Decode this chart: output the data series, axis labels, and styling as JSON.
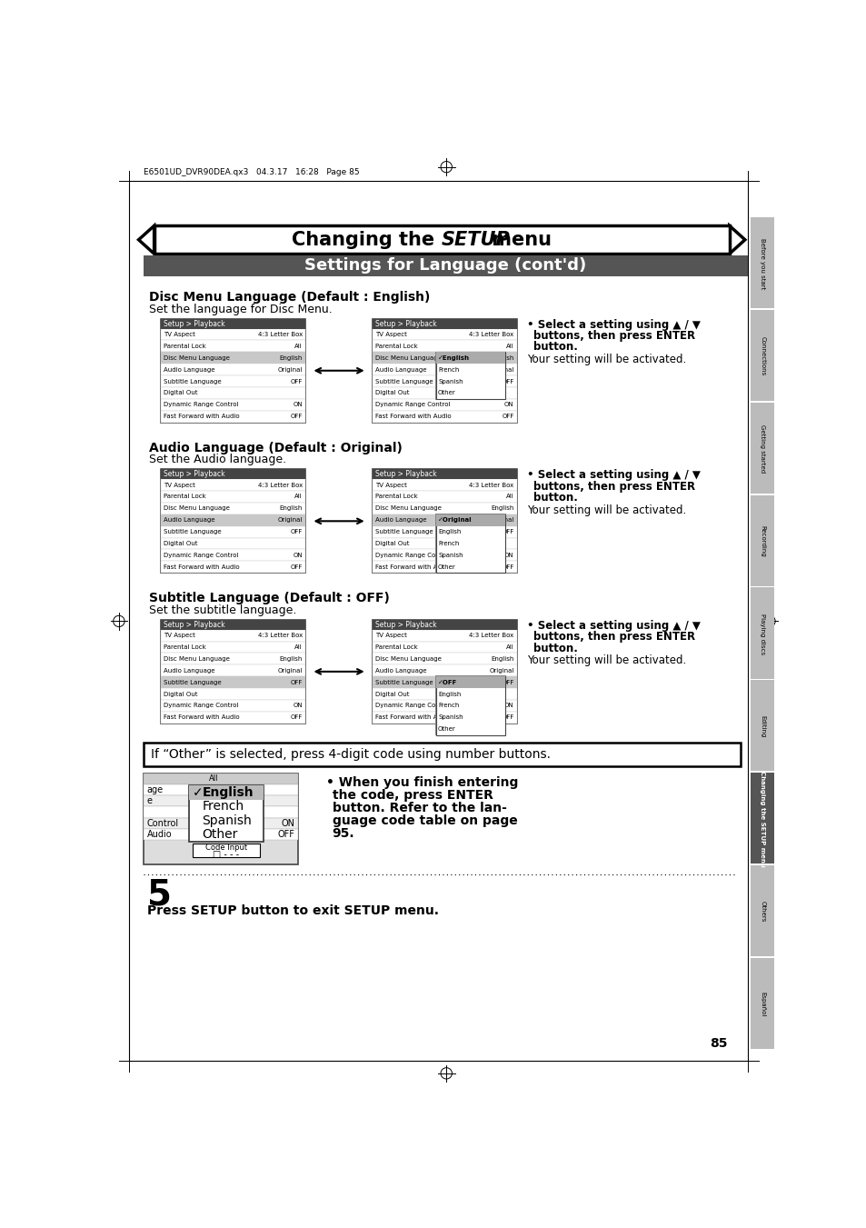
{
  "page_bg": "#ffffff",
  "title_text_normal": "Changing the ",
  "title_text_bold_italic": "SETUP",
  "title_text_end": " menu",
  "subtitle_text": "Settings for Language (cont'd)",
  "header_meta": "E6501UD_DVR90DEA.qx3   04.3.17   16:28   Page 85",
  "section1_title": "Disc Menu Language (Default : English)",
  "section1_desc": "Set the language for Disc Menu.",
  "section2_title": "Audio Language (Default : Original)",
  "section2_desc": "Set the Audio language.",
  "section3_title": "Subtitle Language (Default : OFF)",
  "section3_desc": "Set the subtitle language.",
  "activated_note": "Your setting will be activated.",
  "other_box_text": "If “Other” is selected, press 4-digit code using number buttons.",
  "footer_text": "Press SETUP button to exit SETUP menu.",
  "page_number": "85",
  "right_tabs": [
    "Before you start",
    "Connections",
    "Getting started",
    "Recording",
    "Playing discs",
    "Editing",
    "Changing the SETUP menu",
    "Others",
    "Español"
  ],
  "tab_active_idx": 6,
  "menu_rows": [
    "Setup > Playback",
    "TV Aspect",
    "Parental Lock",
    "Disc Menu Language",
    "Audio Language",
    "Subtitle Language",
    "Digital Out",
    "Dynamic Range Control",
    "Fast Forward with Audio"
  ],
  "menu_vals": [
    "",
    "4:3 Letter Box",
    "All",
    "English",
    "Original",
    "OFF",
    "",
    "ON",
    "OFF"
  ],
  "dropdown_disc": [
    "✓English",
    "French",
    "Spanish",
    "Other"
  ],
  "dropdown_audio": [
    "✓Original",
    "English",
    "French",
    "Spanish",
    "Other"
  ],
  "dropdown_subtitle": [
    "✓OFF",
    "English",
    "French",
    "Spanish",
    "Other"
  ],
  "dropdown_code": [
    "✓English",
    "French",
    "Spanish",
    "Other"
  ],
  "select_line1": "• Select a setting using ▲ / ▼",
  "select_line2": "buttons, then press ENTER",
  "select_line3": "button."
}
